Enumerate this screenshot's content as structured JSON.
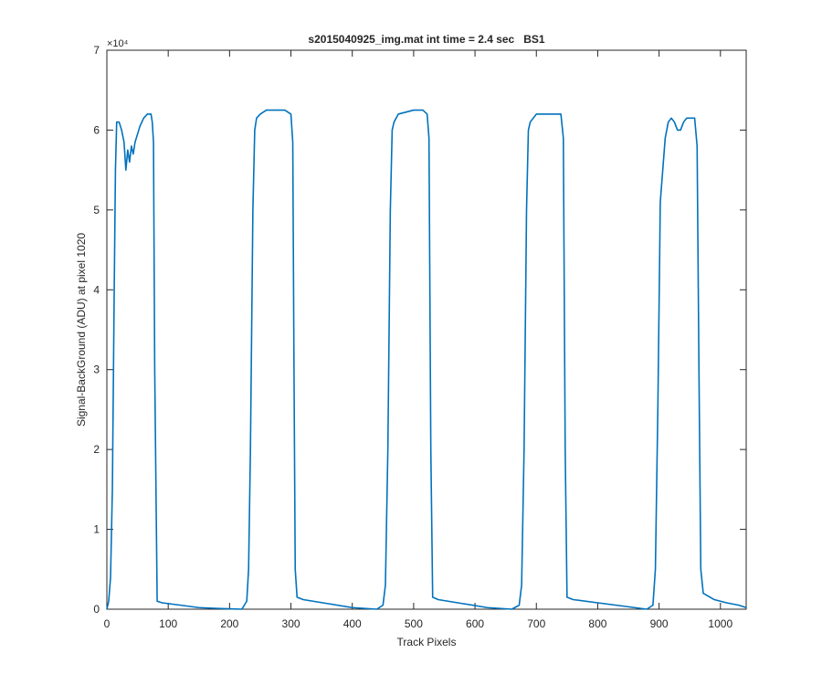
{
  "chart_data": {
    "type": "line",
    "title": "s2015040925_img.mat int time = 2.4 sec   BS1",
    "x_label": "Track Pixels",
    "y_label": "Signal-BackGround (ADU) at pixel 1020",
    "y_multiplier": "×10⁴",
    "xlim": [
      0,
      1042
    ],
    "xticks": [
      0,
      100,
      200,
      300,
      400,
      500,
      600,
      700,
      800,
      900,
      1000
    ],
    "ylim": [
      0,
      7
    ],
    "yticks": [
      0,
      1,
      2,
      3,
      4,
      5,
      6,
      7
    ],
    "grid": false,
    "series": [
      {
        "color": "#0072bd",
        "x": [
          0,
          3,
          6,
          9,
          12,
          14,
          16,
          20,
          24,
          28,
          31,
          34,
          37,
          40,
          43,
          46,
          50,
          54,
          60,
          66,
          72,
          74,
          76,
          78,
          82,
          90,
          120,
          150,
          180,
          220,
          228,
          231,
          234,
          238,
          241,
          244,
          250,
          260,
          290,
          300,
          303,
          305,
          307,
          310,
          320,
          360,
          400,
          440,
          450,
          454,
          458,
          462,
          465,
          468,
          475,
          500,
          515,
          522,
          525,
          528,
          531,
          540,
          580,
          620,
          660,
          672,
          676,
          680,
          684,
          687,
          690,
          700,
          730,
          740,
          744,
          747,
          750,
          760,
          800,
          860,
          880,
          890,
          894,
          898,
          902,
          906,
          910,
          915,
          920,
          925,
          930,
          935,
          940,
          945,
          950,
          958,
          962,
          965,
          968,
          972,
          990,
          1010,
          1030,
          1042
        ],
        "values": [
          0,
          0.1,
          0.4,
          1.5,
          4.0,
          5.5,
          6.1,
          6.1,
          6.0,
          5.85,
          5.5,
          5.75,
          5.6,
          5.8,
          5.7,
          5.85,
          5.95,
          6.05,
          6.15,
          6.2,
          6.2,
          6.1,
          5.85,
          3.0,
          0.1,
          0.08,
          0.05,
          0.02,
          0.01,
          0.0,
          0.1,
          0.5,
          2.0,
          5.0,
          6.0,
          6.15,
          6.2,
          6.25,
          6.25,
          6.2,
          5.85,
          3.0,
          0.5,
          0.15,
          0.12,
          0.07,
          0.02,
          0.0,
          0.05,
          0.3,
          2.0,
          5.0,
          6.0,
          6.1,
          6.2,
          6.25,
          6.25,
          6.2,
          5.9,
          2.0,
          0.15,
          0.12,
          0.07,
          0.02,
          0.0,
          0.05,
          0.3,
          2.0,
          5.0,
          6.0,
          6.1,
          6.2,
          6.2,
          6.2,
          5.9,
          2.0,
          0.15,
          0.12,
          0.08,
          0.02,
          0.0,
          0.05,
          0.5,
          2.5,
          5.1,
          5.5,
          5.9,
          6.1,
          6.15,
          6.1,
          6.0,
          6.0,
          6.1,
          6.15,
          6.15,
          6.15,
          5.8,
          3.0,
          0.5,
          0.2,
          0.12,
          0.08,
          0.05,
          0.02
        ]
      }
    ]
  }
}
